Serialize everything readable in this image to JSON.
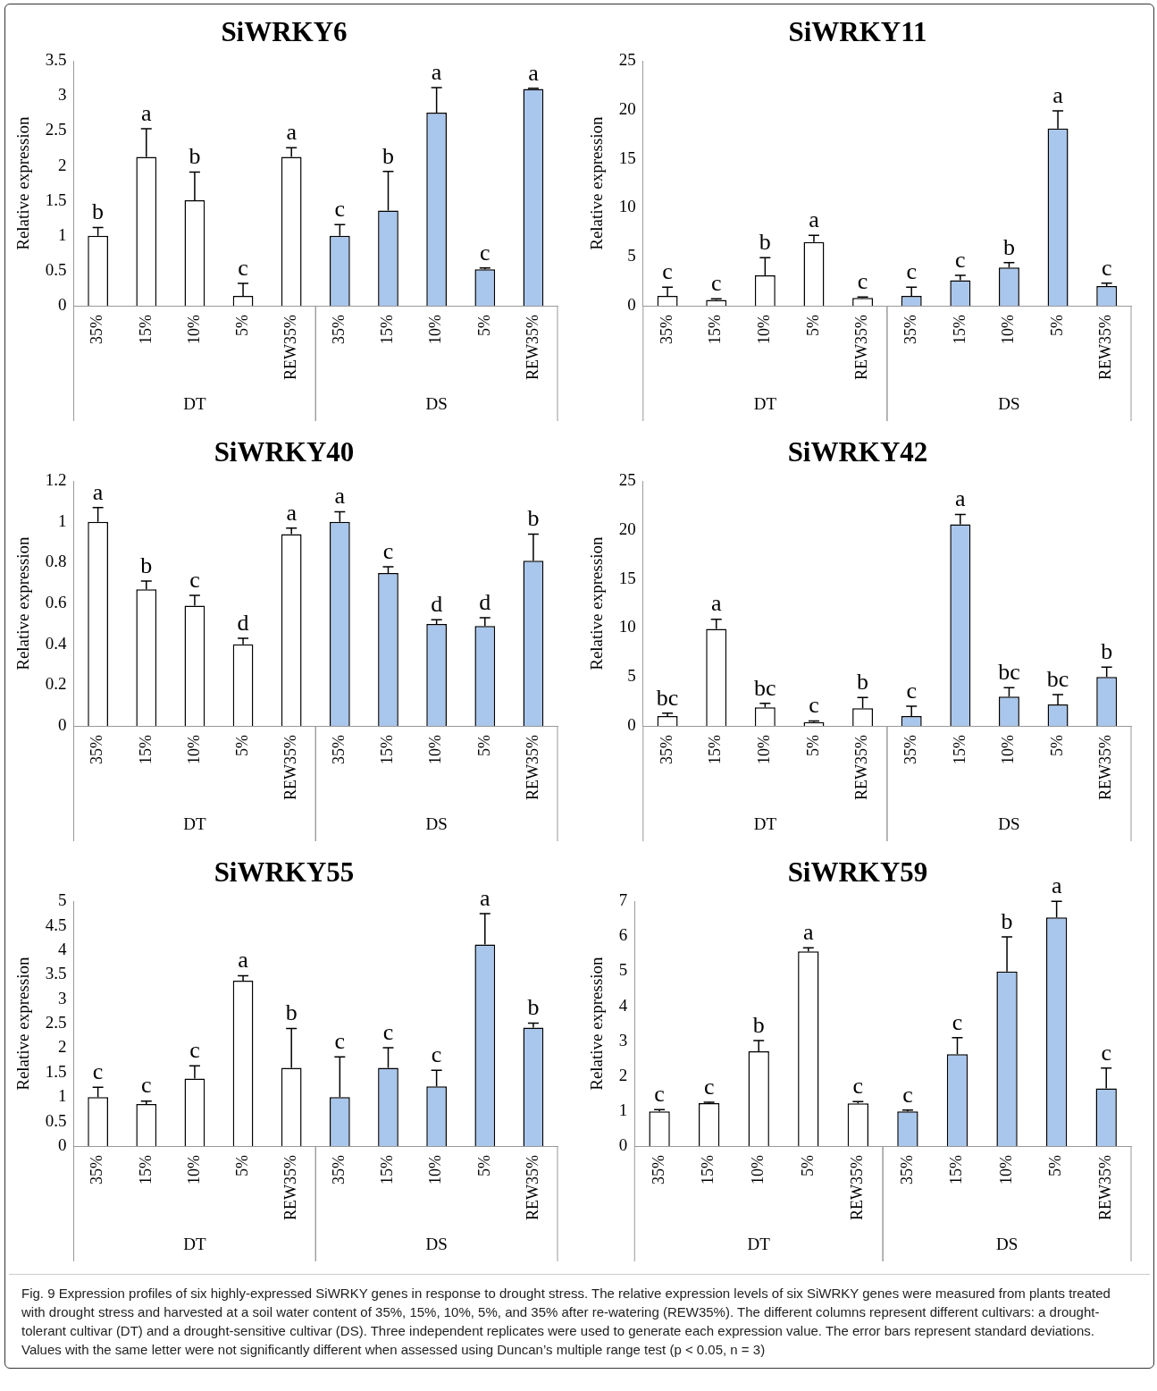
{
  "chart_data": [
    {
      "type": "bar",
      "title": "SiWRKY6",
      "ylabel": "Relative expression",
      "categories": [
        "35%",
        "15%",
        "10%",
        "5%",
        "REW35%",
        "35%",
        "15%",
        "10%",
        "5%",
        "REW35%"
      ],
      "ylim": [
        0,
        3.5
      ],
      "yticks": [
        0,
        0.5,
        1,
        1.5,
        2,
        2.5,
        3,
        3.5
      ],
      "values": [
        1.0,
        2.13,
        1.51,
        0.14,
        2.13,
        1.0,
        1.36,
        2.76,
        0.52,
        3.1
      ],
      "colors": [
        "#ffffff",
        "#ffffff",
        "#ffffff",
        "#ffffff",
        "#ffffff",
        "#a9c6ec",
        "#a9c6ec",
        "#a9c6ec",
        "#a9c6ec",
        "#a9c6ec"
      ],
      "errors": [
        [
          1.0,
          1.12
        ],
        [
          2.13,
          2.53
        ],
        [
          1.51,
          1.91
        ],
        [
          0.14,
          0.32
        ],
        [
          2.13,
          2.26
        ],
        [
          1.0,
          1.16
        ],
        [
          1.36,
          1.92
        ],
        [
          2.76,
          3.12
        ],
        [
          0.52,
          0.54
        ],
        [
          3.1,
          3.11
        ]
      ],
      "value_labels": [
        "b",
        "a",
        "b",
        "c",
        "a",
        "c",
        "b",
        "a",
        "c",
        "a"
      ],
      "annotations": [
        "DT",
        "DS"
      ]
    },
    {
      "type": "bar",
      "title": "SiWRKY11",
      "ylabel": "Relative expression",
      "categories": [
        "35%",
        "15%",
        "10%",
        "5%",
        "REW35%",
        "35%",
        "15%",
        "10%",
        "5%",
        "REW35%"
      ],
      "ylim": [
        0,
        25
      ],
      "yticks": [
        0,
        5,
        10,
        15,
        20,
        25
      ],
      "values": [
        1.0,
        0.6,
        3.1,
        6.5,
        0.8,
        1.0,
        2.6,
        3.9,
        18.1,
        2.0
      ],
      "colors": [
        "#ffffff",
        "#ffffff",
        "#ffffff",
        "#ffffff",
        "#ffffff",
        "#a9c6ec",
        "#a9c6ec",
        "#a9c6ec",
        "#a9c6ec",
        "#a9c6ec"
      ],
      "errors": [
        [
          1.0,
          1.9
        ],
        [
          0.6,
          0.7
        ],
        [
          3.1,
          4.9
        ],
        [
          6.5,
          7.2
        ],
        [
          0.8,
          0.9
        ],
        [
          1.0,
          1.9
        ],
        [
          2.6,
          3.1
        ],
        [
          3.9,
          4.4
        ],
        [
          18.1,
          19.9
        ],
        [
          2.0,
          2.3
        ]
      ],
      "value_labels": [
        "c",
        "c",
        "b",
        "a",
        "c",
        "c",
        "c",
        "b",
        "a",
        "c"
      ],
      "annotations": [
        "DT",
        "DS"
      ]
    },
    {
      "type": "bar",
      "title": "SiWRKY40",
      "ylabel": "Relative expression",
      "categories": [
        "35%",
        "15%",
        "10%",
        "5%",
        "REW35%",
        "35%",
        "15%",
        "10%",
        "5%",
        "REW35%"
      ],
      "ylim": [
        0,
        1.2
      ],
      "yticks": [
        0,
        0.2,
        0.4,
        0.6,
        0.8,
        1,
        1.2
      ],
      "values": [
        1.0,
        0.67,
        0.59,
        0.4,
        0.94,
        1.0,
        0.75,
        0.5,
        0.49,
        0.81
      ],
      "colors": [
        "#ffffff",
        "#ffffff",
        "#ffffff",
        "#ffffff",
        "#ffffff",
        "#a9c6ec",
        "#a9c6ec",
        "#a9c6ec",
        "#a9c6ec",
        "#a9c6ec"
      ],
      "errors": [
        [
          1.0,
          1.07
        ],
        [
          0.67,
          0.71
        ],
        [
          0.59,
          0.64
        ],
        [
          0.4,
          0.43
        ],
        [
          0.94,
          0.97
        ],
        [
          1.0,
          1.05
        ],
        [
          0.75,
          0.78
        ],
        [
          0.5,
          0.52
        ],
        [
          0.49,
          0.53
        ],
        [
          0.81,
          0.94
        ]
      ],
      "value_labels": [
        "a",
        "b",
        "c",
        "d",
        "a",
        "a",
        "c",
        "d",
        "d",
        "b"
      ],
      "annotations": [
        "DT",
        "DS"
      ]
    },
    {
      "type": "bar",
      "title": "SiWRKY42",
      "ylabel": "Relative expression",
      "categories": [
        "35%",
        "15%",
        "10%",
        "5%",
        "REW35%",
        "35%",
        "15%",
        "10%",
        "5%",
        "REW35%"
      ],
      "ylim": [
        0,
        25
      ],
      "yticks": [
        0,
        5,
        10,
        15,
        20,
        25
      ],
      "values": [
        1.0,
        9.9,
        1.9,
        0.4,
        1.8,
        1.0,
        20.6,
        3.0,
        2.2,
        5.0
      ],
      "colors": [
        "#ffffff",
        "#ffffff",
        "#ffffff",
        "#ffffff",
        "#ffffff",
        "#a9c6ec",
        "#a9c6ec",
        "#a9c6ec",
        "#a9c6ec",
        "#a9c6ec"
      ],
      "errors": [
        [
          1.0,
          1.3
        ],
        [
          9.9,
          10.9
        ],
        [
          1.9,
          2.3
        ],
        [
          0.4,
          0.5
        ],
        [
          1.8,
          2.9
        ],
        [
          1.0,
          2.0
        ],
        [
          20.6,
          21.6
        ],
        [
          3.0,
          3.9
        ],
        [
          2.2,
          3.2
        ],
        [
          5.0,
          6.0
        ]
      ],
      "value_labels": [
        "bc",
        "a",
        "bc",
        "c",
        "b",
        "c",
        "a",
        "bc",
        "bc",
        "b"
      ],
      "annotations": [
        "DT",
        "DS"
      ]
    },
    {
      "type": "bar",
      "title": "SiWRKY55",
      "ylabel": "Relative expression",
      "categories": [
        "35%",
        "15%",
        "10%",
        "5%",
        "REW35%",
        "35%",
        "15%",
        "10%",
        "5%",
        "REW35%"
      ],
      "ylim": [
        0,
        5
      ],
      "yticks": [
        0,
        0.5,
        1,
        1.5,
        2,
        2.5,
        3,
        3.5,
        4,
        4.5,
        5
      ],
      "values": [
        1.0,
        0.86,
        1.38,
        3.38,
        1.6,
        1.0,
        1.6,
        1.22,
        4.12,
        2.42
      ],
      "colors": [
        "#ffffff",
        "#ffffff",
        "#ffffff",
        "#ffffff",
        "#ffffff",
        "#a9c6ec",
        "#a9c6ec",
        "#a9c6ec",
        "#a9c6ec",
        "#a9c6ec"
      ],
      "errors": [
        [
          1.0,
          1.2
        ],
        [
          0.86,
          0.92
        ],
        [
          1.38,
          1.64
        ],
        [
          3.38,
          3.48
        ],
        [
          1.6,
          2.4
        ],
        [
          1.0,
          1.82
        ],
        [
          1.6,
          2.01
        ],
        [
          1.22,
          1.55
        ],
        [
          4.12,
          4.75
        ],
        [
          2.42,
          2.51
        ]
      ],
      "value_labels": [
        "c",
        "c",
        "c",
        "a",
        "b",
        "c",
        "c",
        "c",
        "a",
        "b"
      ],
      "annotations": [
        "DT",
        "DS"
      ]
    },
    {
      "type": "bar",
      "title": "SiWRKY59",
      "ylabel": "Relative expression",
      "categories": [
        "35%",
        "15%",
        "10%",
        "5%",
        "REW35%",
        "35%",
        "15%",
        "10%",
        "5%",
        "REW35%"
      ],
      "ylim": [
        0,
        7
      ],
      "yticks": [
        0,
        1,
        2,
        3,
        4,
        5,
        6,
        7
      ],
      "values": [
        0.99,
        1.23,
        2.71,
        5.57,
        1.22,
        0.99,
        2.63,
        4.99,
        6.54,
        1.65
      ],
      "colors": [
        "#ffffff",
        "#ffffff",
        "#ffffff",
        "#ffffff",
        "#ffffff",
        "#a9c6ec",
        "#a9c6ec",
        "#a9c6ec",
        "#a9c6ec",
        "#a9c6ec"
      ],
      "errors": [
        [
          0.99,
          1.04
        ],
        [
          1.23,
          1.25
        ],
        [
          2.71,
          3.02
        ],
        [
          5.57,
          5.67
        ],
        [
          1.22,
          1.27
        ],
        [
          0.99,
          1.03
        ],
        [
          2.63,
          3.1
        ],
        [
          4.99,
          5.98
        ],
        [
          6.54,
          7.0
        ],
        [
          1.65,
          2.23
        ]
      ],
      "value_labels": [
        "c",
        "c",
        "b",
        "a",
        "c",
        "c",
        "c",
        "b",
        "a",
        "c"
      ],
      "annotations": [
        "DT",
        "DS",
        "Fig. 9 Expression profiles of six highly-expressed SiWRKY genes in response to drought stress. The relative expression levels of six SiWRKY genes were measured from plants treated with drought stress and harvested at a soil water content of 35%, 15%, 10%, 5%, and 35% after re-watering (REW35%). The different columns represent different cultivars: a drought-tolerant cultivar (DT) and a drought-sensitive cultivar (DS). Three independent replicates were used to generate each expression value. The error bars represent standard deviations. Values with the same letter were not significantly different when assessed using Duncan’s multiple range test (p < 0.05, n = 3)"
      ]
    }
  ]
}
